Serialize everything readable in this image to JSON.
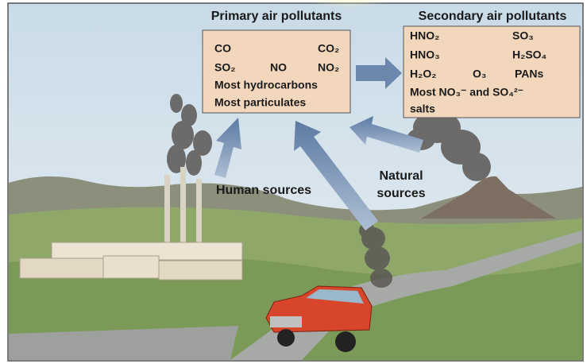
{
  "primary": {
    "title": "Primary air pollutants",
    "items": [
      "CO",
      "CO₂",
      "SO₂",
      "NO",
      "NO₂",
      "Most hydrocarbons",
      "Most particulates"
    ]
  },
  "secondary": {
    "title": "Secondary air pollutants",
    "items": [
      "HNO₂",
      "SO₃",
      "HNO₃",
      "H₂SO₄",
      "H₂O₂",
      "O₃",
      "PANs",
      "Most NO₃⁻ and SO₄²⁻",
      "salts"
    ]
  },
  "sources": {
    "human": "Human sources",
    "natural_1": "Natural",
    "natural_2": "sources"
  }
}
